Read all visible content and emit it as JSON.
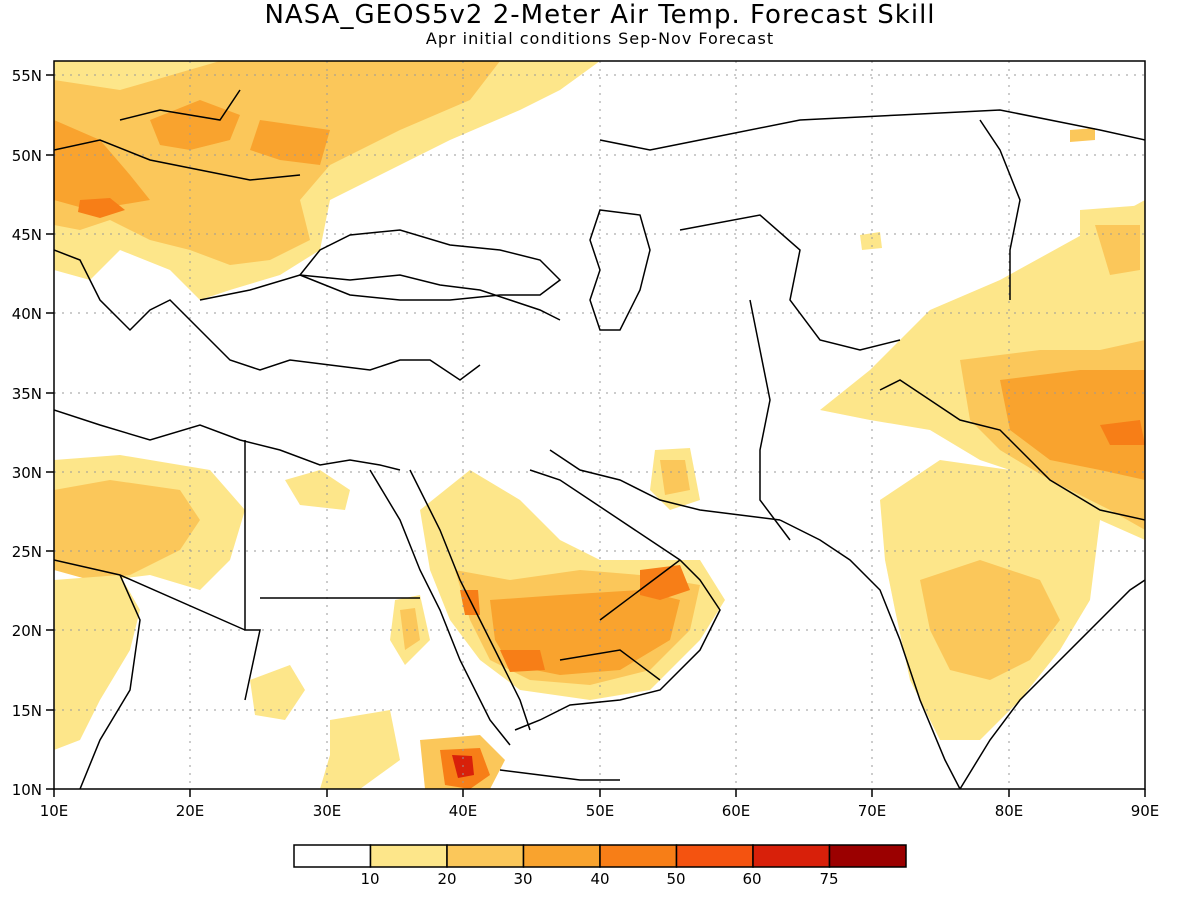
{
  "title": "NASA_GEOS5v2 2-Meter Air Temp. Forecast Skill",
  "subtitle": "Apr initial conditions  Sep-Nov Forecast",
  "map": {
    "lon_range": [
      10,
      90
    ],
    "lat_range": [
      10,
      56
    ],
    "lon_ticks": [
      "10E",
      "20E",
      "30E",
      "40E",
      "50E",
      "60E",
      "70E",
      "80E",
      "90E"
    ],
    "lat_ticks": [
      "10N",
      "15N",
      "20N",
      "25N",
      "30N",
      "35N",
      "40N",
      "45N",
      "50N",
      "55N"
    ],
    "gridlines": "dotted"
  },
  "colorbar": {
    "labels": [
      "10",
      "20",
      "30",
      "40",
      "50",
      "60",
      "75"
    ],
    "colors": [
      "#ffffff",
      "#fde68a",
      "#fbc75a",
      "#f9a32e",
      "#f77e17",
      "#f45310",
      "#d8200a",
      "#9b0000"
    ]
  }
}
